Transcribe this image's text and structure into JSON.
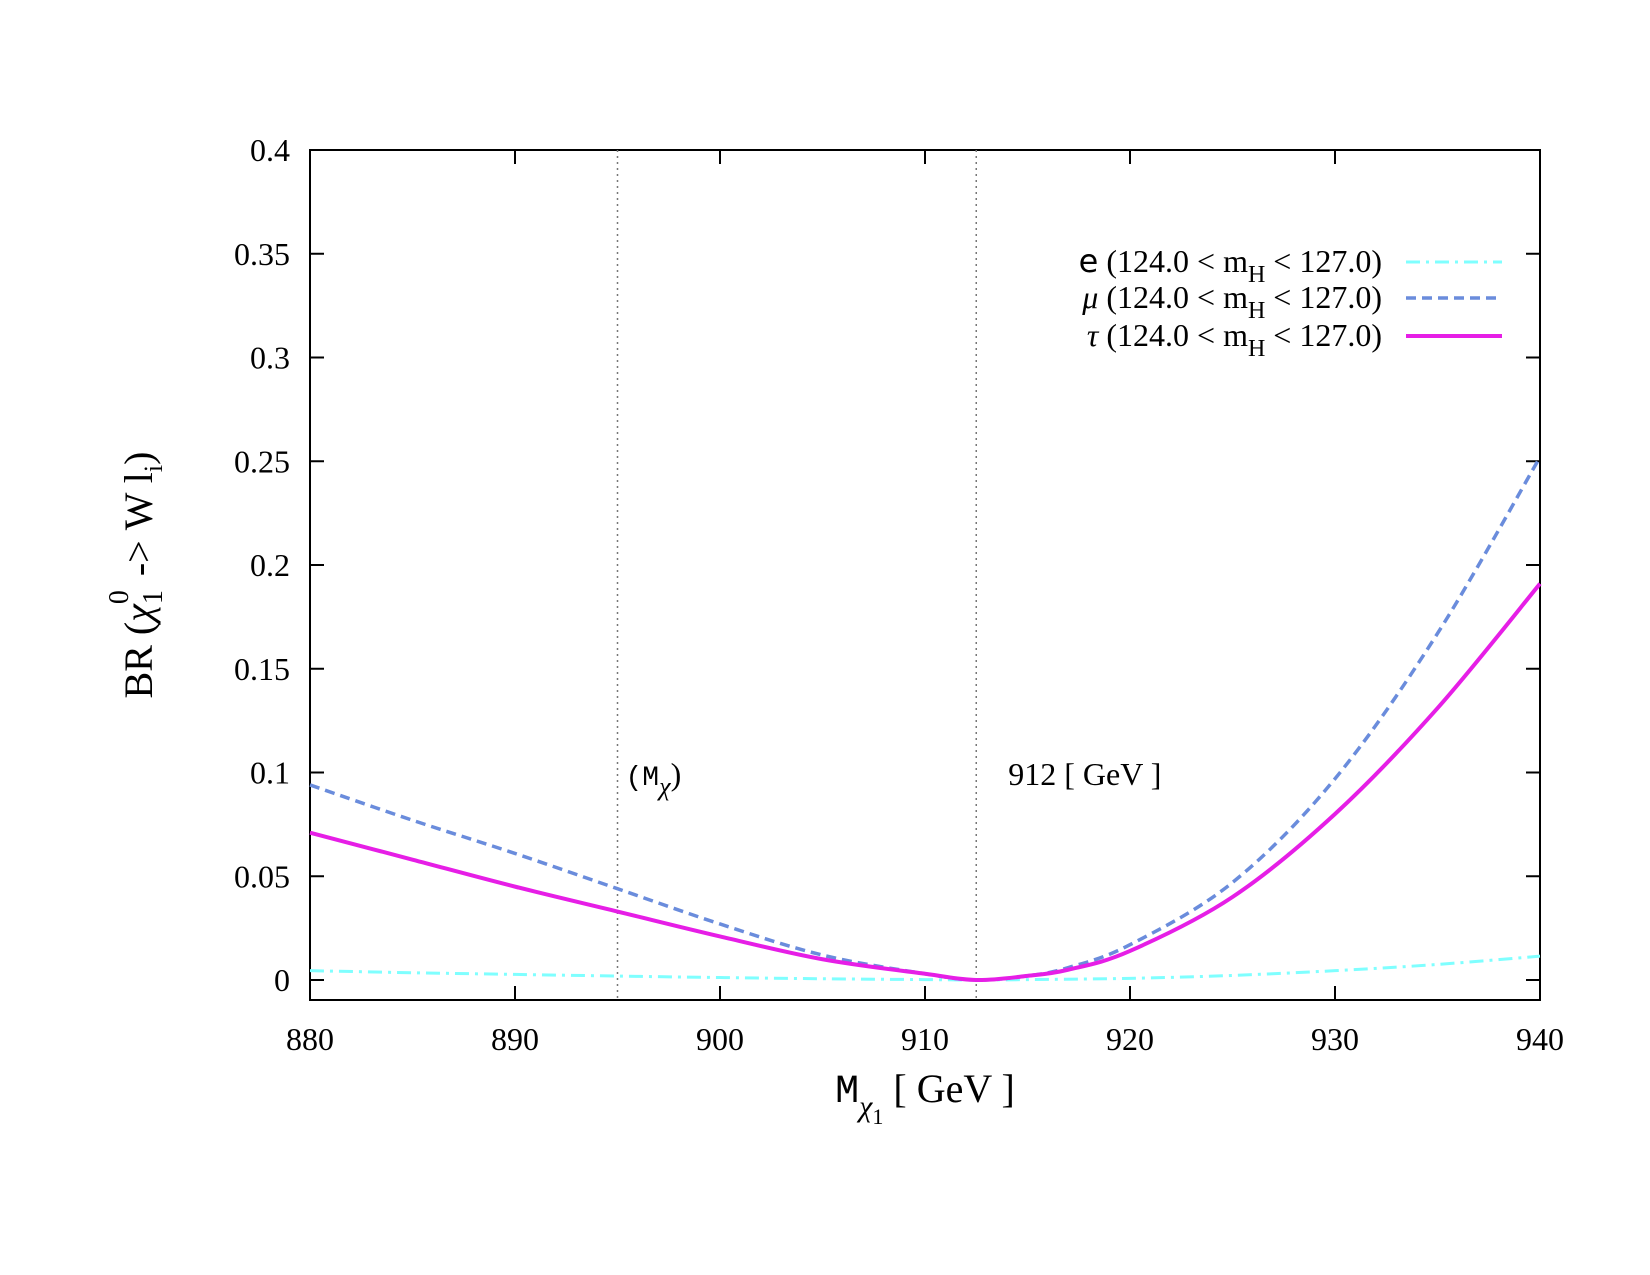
{
  "chart_data": {
    "type": "line",
    "xlabel": {
      "main": "M",
      "sub": "χ",
      "subsub": "1",
      "unit": " [ GeV ]"
    },
    "ylabel": {
      "prefix": "BR (",
      "chi": "χ",
      "sub": "1",
      "sup": "0",
      "mid": " -> W l",
      "sub2": "i",
      "suffix": ")"
    },
    "xlim": [
      880,
      940
    ],
    "ylim": [
      0,
      0.4
    ],
    "xticks": [
      880,
      890,
      900,
      910,
      920,
      930,
      940
    ],
    "yticks": [
      0,
      0.05,
      0.1,
      0.15,
      0.2,
      0.25,
      0.3,
      0.35,
      0.4
    ],
    "ytick_labels": [
      "0",
      "0.05",
      "0.1",
      "0.15",
      "0.2",
      "0.25",
      "0.3",
      "0.35",
      "0.4"
    ],
    "xtick_labels": [
      "880",
      "890",
      "900",
      "910",
      "920",
      "930",
      "940"
    ],
    "grid": false,
    "legend_position": "top-right",
    "vertical_lines": [
      {
        "x": 895,
        "label_main": "(M",
        "label_sub": "χ",
        "label_close": ")"
      },
      {
        "x": 912.5,
        "label": "912 [ GeV ]"
      }
    ],
    "series": [
      {
        "name_symbol": "e",
        "name_rest": " (124.0 < m",
        "name_sub": "H",
        "name_end": " < 127.0)",
        "color": "#7fffff",
        "dash": "14 6 3 6",
        "width": 3,
        "x": [
          880,
          885,
          890,
          895,
          900,
          905,
          910,
          912.5,
          915,
          920,
          925,
          930,
          935,
          940
        ],
        "y": [
          0.0045,
          0.0035,
          0.0027,
          0.0019,
          0.0012,
          0.0006,
          0.0002,
          0.0,
          0.0002,
          0.0008,
          0.0022,
          0.0045,
          0.0075,
          0.0115
        ]
      },
      {
        "name_symbol": "μ",
        "name_rest": " (124.0 < m",
        "name_sub": "H",
        "name_end": " < 127.0)",
        "color": "#6a8cdc",
        "dash": "10 6",
        "width": 3.5,
        "x": [
          880,
          885,
          890,
          895,
          900,
          905,
          910,
          912.5,
          915,
          917,
          920,
          925,
          930,
          935,
          940
        ],
        "y": [
          0.094,
          0.077,
          0.061,
          0.044,
          0.027,
          0.012,
          0.003,
          0.0,
          0.002,
          0.006,
          0.017,
          0.047,
          0.097,
          0.167,
          0.252
        ]
      },
      {
        "name_symbol": "τ",
        "name_rest": " (124.0 < m",
        "name_sub": "H",
        "name_end": " < 127.0)",
        "color": "#e61ee6",
        "dash": "",
        "width": 4,
        "x": [
          880,
          885,
          890,
          895,
          900,
          905,
          910,
          912.5,
          915,
          917,
          920,
          925,
          930,
          935,
          940
        ],
        "y": [
          0.071,
          0.058,
          0.045,
          0.033,
          0.021,
          0.01,
          0.003,
          0.0,
          0.002,
          0.005,
          0.014,
          0.04,
          0.08,
          0.131,
          0.191
        ]
      }
    ]
  }
}
